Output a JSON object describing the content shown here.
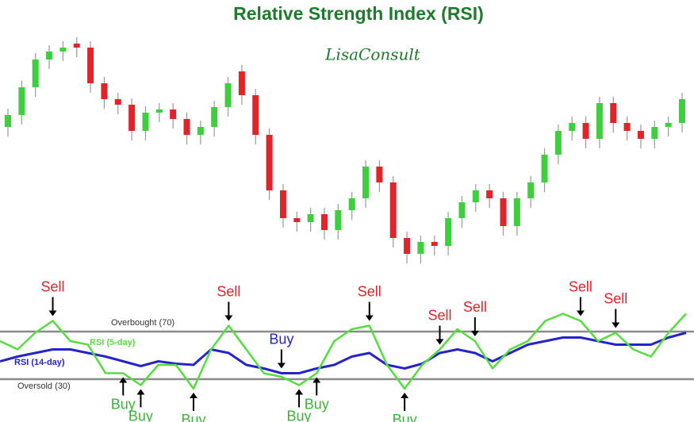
{
  "chart_data": [
    {
      "type": "candlestick",
      "title": "Relative Strength Index (RSI)",
      "subtitle": "LisaConsult",
      "up_color": "#3ecf3e",
      "down_color": "#e3232a",
      "ylim": [
        0,
        330
      ],
      "open": [
        200,
        215,
        250,
        285,
        295,
        305,
        300,
        255,
        235,
        228,
        195,
        218,
        222,
        210,
        190,
        200,
        225,
        270,
        240,
        190,
        120,
        85,
        80,
        90,
        70,
        95,
        110,
        150,
        130,
        60,
        40,
        55,
        50,
        85,
        105,
        120,
        110,
        75,
        110,
        130,
        165,
        195,
        205,
        185,
        230,
        205,
        195,
        185,
        200,
        205
      ],
      "close": [
        215,
        250,
        285,
        295,
        300,
        300,
        255,
        235,
        228,
        195,
        218,
        222,
        210,
        190,
        200,
        225,
        255,
        240,
        190,
        120,
        85,
        80,
        90,
        70,
        95,
        110,
        150,
        130,
        60,
        40,
        55,
        50,
        85,
        105,
        120,
        110,
        75,
        110,
        130,
        165,
        195,
        205,
        185,
        230,
        205,
        195,
        185,
        200,
        205,
        235
      ],
      "high": [
        223,
        258,
        293,
        303,
        308,
        313,
        308,
        263,
        243,
        236,
        226,
        230,
        230,
        218,
        208,
        233,
        263,
        278,
        248,
        198,
        128,
        93,
        98,
        98,
        103,
        118,
        158,
        158,
        138,
        68,
        63,
        63,
        93,
        113,
        128,
        128,
        118,
        118,
        138,
        173,
        203,
        213,
        213,
        238,
        238,
        213,
        203,
        208,
        213,
        243
      ],
      "low": [
        188,
        203,
        238,
        273,
        283,
        288,
        243,
        223,
        216,
        183,
        183,
        206,
        198,
        178,
        178,
        188,
        213,
        228,
        178,
        108,
        73,
        68,
        68,
        58,
        58,
        83,
        98,
        118,
        48,
        28,
        28,
        38,
        38,
        73,
        93,
        98,
        63,
        63,
        98,
        118,
        153,
        183,
        173,
        173,
        193,
        183,
        173,
        173,
        188,
        193
      ]
    },
    {
      "type": "line",
      "ylim": [
        0,
        100
      ],
      "reference_lines": [
        {
          "value": 70,
          "label": "Overbought (70)"
        },
        {
          "value": 30,
          "label": "Oversold (30)"
        }
      ],
      "series": [
        {
          "name": "RSI (5-day)",
          "color": "#55dd40",
          "values": [
            62,
            55,
            69,
            79,
            62,
            59,
            35,
            35,
            25,
            42,
            42,
            22,
            55,
            75,
            55,
            35,
            32,
            25,
            35,
            62,
            72,
            75,
            42,
            22,
            42,
            55,
            72,
            62,
            39,
            55,
            62,
            79,
            85,
            79,
            62,
            69,
            55,
            49,
            69,
            85
          ]
        },
        {
          "name": "RSI (14-day)",
          "color": "#2424c8",
          "values": [
            45,
            49,
            52,
            55,
            55,
            52,
            49,
            45,
            41,
            45,
            43,
            42,
            55,
            52,
            42,
            39,
            35,
            35,
            39,
            42,
            49,
            52,
            42,
            39,
            43,
            52,
            55,
            52,
            45,
            52,
            59,
            62,
            65,
            65,
            62,
            59,
            59,
            59,
            65,
            69
          ]
        }
      ],
      "signals": [
        {
          "label": "Sell",
          "series": 0,
          "index": 3
        },
        {
          "label": "Sell",
          "series": 0,
          "index": 13
        },
        {
          "label": "Sell",
          "series": 0,
          "index": 21
        },
        {
          "label": "Sell",
          "series": 0,
          "index": 25
        },
        {
          "label": "Sell",
          "series": 0,
          "index": 27
        },
        {
          "label": "Sell",
          "series": 0,
          "index": 33
        },
        {
          "label": "Sell",
          "series": 0,
          "index": 35
        },
        {
          "label": "Buy",
          "series": 0,
          "index": 7
        },
        {
          "label": "Buy",
          "series": 0,
          "index": 8
        },
        {
          "label": "Buy",
          "series": 0,
          "index": 11
        },
        {
          "label": "Buy",
          "series": 0,
          "index": 17
        },
        {
          "label": "Buy",
          "series": 0,
          "index": 18
        },
        {
          "label": "Buy",
          "series": 0,
          "index": 23
        },
        {
          "label": "Buy",
          "series": 1,
          "index": 16
        }
      ]
    }
  ]
}
